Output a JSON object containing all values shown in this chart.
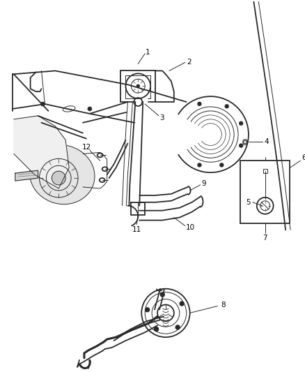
{
  "bg_color": "#ffffff",
  "line_color": "#2a2a2a",
  "fig_width": 4.38,
  "fig_height": 5.33,
  "dpi": 100,
  "label_font": 7.5,
  "lw_main": 1.3,
  "lw_thin": 0.7,
  "lw_thick": 2.2
}
